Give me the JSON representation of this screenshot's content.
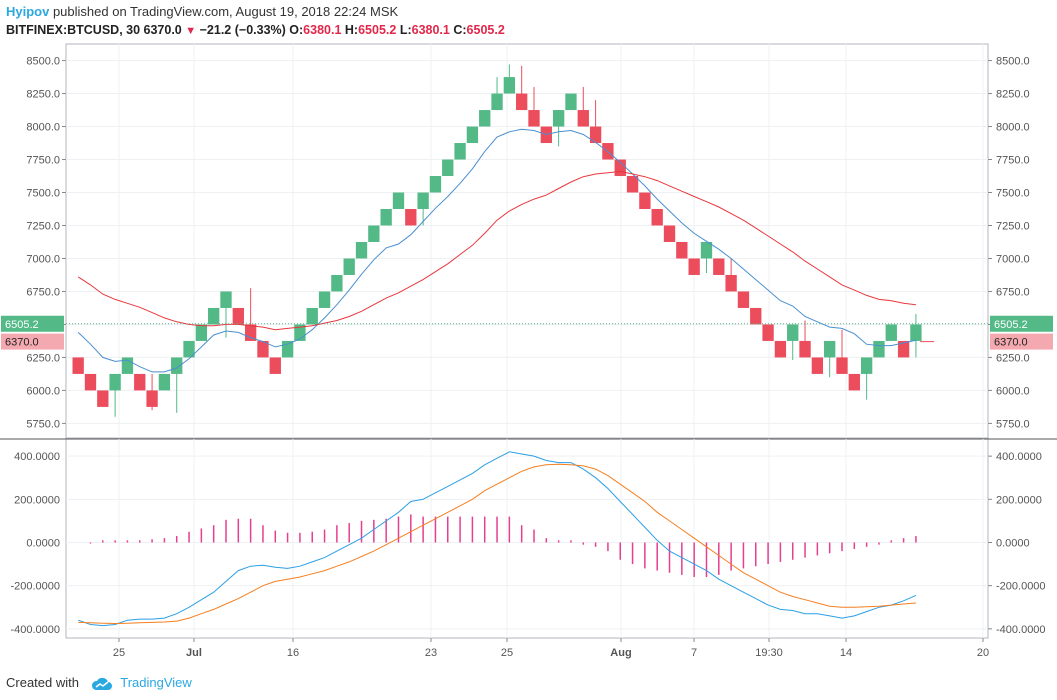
{
  "header": {
    "author": "Hyipov",
    "published_text": " published on TradingView.com, August 19, 2018 22:24 MSK",
    "symbol": "BITFINEX:BTCUSD, 30",
    "last": "6370.0",
    "change": "−21.2 (−0.33%)",
    "o_label": "O:",
    "o_value": "6380.1",
    "h_label": "H:",
    "h_value": "6505.2",
    "l_label": "L:",
    "l_value": "6380.1",
    "c_label": "C:",
    "c_value": "6505.2"
  },
  "footer": {
    "created_text": "Created with",
    "brand": "TradingView"
  },
  "colors": {
    "up": "#53b987",
    "down": "#eb4d5c",
    "ema_fast": "#4a8fd0",
    "ema_slow": "#e8373d",
    "macd": "#2b9fe6",
    "signal": "#f57f21",
    "hist": "#e53f8f",
    "price_line": "#53b987"
  },
  "chart_data": [
    {
      "type": "renko",
      "ylim": [
        5650,
        8600
      ],
      "y_ticks": [
        "5750.0",
        "6000.0",
        "6250.0",
        "6500.0",
        "6750.0",
        "7000.0",
        "7250.0",
        "7500.0",
        "7750.0",
        "8000.0",
        "8250.0",
        "8500.0"
      ],
      "brick_size": 125,
      "bricks": [
        {
          "low": 6125,
          "dir": "down"
        },
        {
          "low": 6000,
          "dir": "down"
        },
        {
          "low": 5875,
          "dir": "down"
        },
        {
          "low": 6000,
          "dir": "up"
        },
        {
          "low": 6125,
          "dir": "up"
        },
        {
          "low": 6000,
          "dir": "down"
        },
        {
          "low": 5875,
          "dir": "down"
        },
        {
          "low": 6000,
          "dir": "up"
        },
        {
          "low": 6125,
          "dir": "up"
        },
        {
          "low": 6250,
          "dir": "up"
        },
        {
          "low": 6375,
          "dir": "up"
        },
        {
          "low": 6500,
          "dir": "up"
        },
        {
          "low": 6625,
          "dir": "up"
        },
        {
          "low": 6500,
          "dir": "down"
        },
        {
          "low": 6375,
          "dir": "down"
        },
        {
          "low": 6250,
          "dir": "down"
        },
        {
          "low": 6125,
          "dir": "down"
        },
        {
          "low": 6250,
          "dir": "up"
        },
        {
          "low": 6375,
          "dir": "up"
        },
        {
          "low": 6500,
          "dir": "up"
        },
        {
          "low": 6625,
          "dir": "up"
        },
        {
          "low": 6750,
          "dir": "up"
        },
        {
          "low": 6875,
          "dir": "up"
        },
        {
          "low": 7000,
          "dir": "up"
        },
        {
          "low": 7125,
          "dir": "up"
        },
        {
          "low": 7250,
          "dir": "up"
        },
        {
          "low": 7375,
          "dir": "up"
        },
        {
          "low": 7250,
          "dir": "down"
        },
        {
          "low": 7375,
          "dir": "up"
        },
        {
          "low": 7500,
          "dir": "up"
        },
        {
          "low": 7625,
          "dir": "up"
        },
        {
          "low": 7750,
          "dir": "up"
        },
        {
          "low": 7875,
          "dir": "up"
        },
        {
          "low": 8000,
          "dir": "up"
        },
        {
          "low": 8125,
          "dir": "up"
        },
        {
          "low": 8250,
          "dir": "up"
        },
        {
          "low": 8125,
          "dir": "down"
        },
        {
          "low": 8000,
          "dir": "down"
        },
        {
          "low": 7875,
          "dir": "down"
        },
        {
          "low": 8000,
          "dir": "up"
        },
        {
          "low": 8125,
          "dir": "up"
        },
        {
          "low": 8000,
          "dir": "down"
        },
        {
          "low": 7875,
          "dir": "down"
        },
        {
          "low": 7750,
          "dir": "down"
        },
        {
          "low": 7625,
          "dir": "down"
        },
        {
          "low": 7500,
          "dir": "down"
        },
        {
          "low": 7375,
          "dir": "down"
        },
        {
          "low": 7250,
          "dir": "down"
        },
        {
          "low": 7125,
          "dir": "down"
        },
        {
          "low": 7000,
          "dir": "down"
        },
        {
          "low": 6875,
          "dir": "down"
        },
        {
          "low": 7000,
          "dir": "up"
        },
        {
          "low": 6875,
          "dir": "down"
        },
        {
          "low": 6750,
          "dir": "down"
        },
        {
          "low": 6625,
          "dir": "down"
        },
        {
          "low": 6500,
          "dir": "down"
        },
        {
          "low": 6375,
          "dir": "down"
        },
        {
          "low": 6250,
          "dir": "down"
        },
        {
          "low": 6375,
          "dir": "up"
        },
        {
          "low": 6250,
          "dir": "down"
        },
        {
          "low": 6125,
          "dir": "down"
        },
        {
          "low": 6250,
          "dir": "up"
        },
        {
          "low": 6125,
          "dir": "down"
        },
        {
          "low": 6000,
          "dir": "down"
        },
        {
          "low": 6125,
          "dir": "up"
        },
        {
          "low": 6250,
          "dir": "up"
        },
        {
          "low": 6375,
          "dir": "up"
        },
        {
          "low": 6250,
          "dir": "down"
        },
        {
          "low": 6375,
          "dir": "up"
        }
      ],
      "wicks": [
        {
          "i": 3,
          "low": 5800,
          "high": 6125
        },
        {
          "i": 6,
          "low": 5850,
          "high": 6125
        },
        {
          "i": 8,
          "low": 5830,
          "high": 6125
        },
        {
          "i": 12,
          "low": 6400,
          "high": 6750
        },
        {
          "i": 14,
          "low": 6375,
          "high": 6775
        },
        {
          "i": 28,
          "low": 7250,
          "high": 7500
        },
        {
          "i": 34,
          "low": 8125,
          "high": 8375
        },
        {
          "i": 35,
          "low": 8250,
          "high": 8470
        },
        {
          "i": 36,
          "low": 8125,
          "high": 8460
        },
        {
          "i": 37,
          "low": 8000,
          "high": 8300
        },
        {
          "i": 39,
          "low": 7850,
          "high": 8125
        },
        {
          "i": 41,
          "low": 8000,
          "high": 8300
        },
        {
          "i": 42,
          "low": 7875,
          "high": 8200
        },
        {
          "i": 51,
          "low": 6890,
          "high": 7125
        },
        {
          "i": 53,
          "low": 6750,
          "high": 7000
        },
        {
          "i": 58,
          "low": 6230,
          "high": 6500
        },
        {
          "i": 59,
          "low": 6250,
          "high": 6530
        },
        {
          "i": 61,
          "low": 6100,
          "high": 6375
        },
        {
          "i": 62,
          "low": 6125,
          "high": 6460
        },
        {
          "i": 64,
          "low": 5930,
          "high": 6250
        },
        {
          "i": 68,
          "low": 6250,
          "high": 6580
        }
      ],
      "ema_fast": [
        6440,
        6350,
        6250,
        6220,
        6230,
        6180,
        6140,
        6140,
        6170,
        6240,
        6330,
        6420,
        6450,
        6440,
        6400,
        6370,
        6330,
        6350,
        6390,
        6460,
        6550,
        6650,
        6760,
        6880,
        6990,
        7080,
        7110,
        7180,
        7280,
        7380,
        7470,
        7570,
        7680,
        7810,
        7920,
        7960,
        7980,
        7970,
        7940,
        7960,
        7970,
        7940,
        7880,
        7810,
        7730,
        7640,
        7550,
        7450,
        7360,
        7270,
        7190,
        7130,
        7070,
        7000,
        6920,
        6840,
        6760,
        6680,
        6640,
        6560,
        6520,
        6480,
        6470,
        6430,
        6350,
        6340,
        6340,
        6360,
        6380
      ],
      "ema_slow": [
        6860,
        6800,
        6730,
        6690,
        6660,
        6630,
        6590,
        6550,
        6520,
        6500,
        6490,
        6490,
        6500,
        6500,
        6490,
        6480,
        6460,
        6470,
        6480,
        6490,
        6510,
        6530,
        6560,
        6600,
        6650,
        6700,
        6740,
        6790,
        6840,
        6900,
        6960,
        7030,
        7100,
        7190,
        7290,
        7360,
        7410,
        7450,
        7480,
        7530,
        7580,
        7620,
        7640,
        7650,
        7660,
        7640,
        7620,
        7590,
        7550,
        7510,
        7470,
        7430,
        7390,
        7340,
        7290,
        7230,
        7170,
        7110,
        7050,
        6980,
        6920,
        6860,
        6800,
        6760,
        6720,
        6690,
        6680,
        6660,
        6650
      ],
      "current_price": {
        "value": "6505.2"
      },
      "prev_price": {
        "value": "6370.0"
      }
    },
    {
      "type": "macd",
      "ylim": [
        -440,
        480
      ],
      "y_ticks": [
        "-400.0000",
        "-200.0000",
        "0.0000",
        "200.0000",
        "400.0000"
      ],
      "x_ticks": [
        "25",
        "Jul",
        "16",
        "23",
        "25",
        "Aug",
        "7",
        "19:30",
        "14",
        "20"
      ],
      "macd": [
        -360,
        -380,
        -385,
        -380,
        -360,
        -355,
        -355,
        -350,
        -330,
        -300,
        -265,
        -230,
        -180,
        -130,
        -110,
        -105,
        -115,
        -120,
        -110,
        -90,
        -70,
        -40,
        -10,
        20,
        60,
        100,
        140,
        190,
        200,
        230,
        260,
        290,
        320,
        360,
        390,
        420,
        410,
        400,
        380,
        370,
        370,
        340,
        300,
        250,
        190,
        130,
        70,
        10,
        -40,
        -70,
        -100,
        -130,
        -170,
        -200,
        -230,
        -260,
        -290,
        -310,
        -315,
        -330,
        -330,
        -340,
        -350,
        -340,
        -320,
        -300,
        -290,
        -270,
        -245
      ],
      "signal": [
        -370,
        -372,
        -374,
        -375,
        -374,
        -372,
        -370,
        -368,
        -364,
        -350,
        -330,
        -310,
        -285,
        -260,
        -230,
        -200,
        -180,
        -170,
        -160,
        -145,
        -130,
        -110,
        -90,
        -65,
        -40,
        -10,
        20,
        50,
        80,
        110,
        140,
        170,
        200,
        240,
        270,
        300,
        330,
        350,
        360,
        362,
        360,
        355,
        340,
        310,
        270,
        230,
        190,
        140,
        100,
        60,
        20,
        -20,
        -60,
        -100,
        -140,
        -170,
        -200,
        -230,
        -250,
        -265,
        -280,
        -295,
        -300,
        -300,
        -298,
        -295,
        -290,
        -285,
        -280
      ],
      "hist": [
        0,
        -5,
        10,
        10,
        10,
        10,
        15,
        20,
        30,
        50,
        65,
        80,
        105,
        110,
        110,
        80,
        55,
        45,
        45,
        50,
        60,
        80,
        90,
        100,
        105,
        110,
        120,
        130,
        120,
        120,
        120,
        120,
        120,
        120,
        120,
        120,
        80,
        60,
        20,
        10,
        10,
        -10,
        -20,
        -40,
        -80,
        -100,
        -120,
        -130,
        -140,
        -150,
        -160,
        -160,
        -150,
        -130,
        -120,
        -110,
        -100,
        -90,
        -80,
        -70,
        -60,
        -50,
        -40,
        -30,
        -20,
        -10,
        10,
        20,
        30
      ]
    }
  ]
}
